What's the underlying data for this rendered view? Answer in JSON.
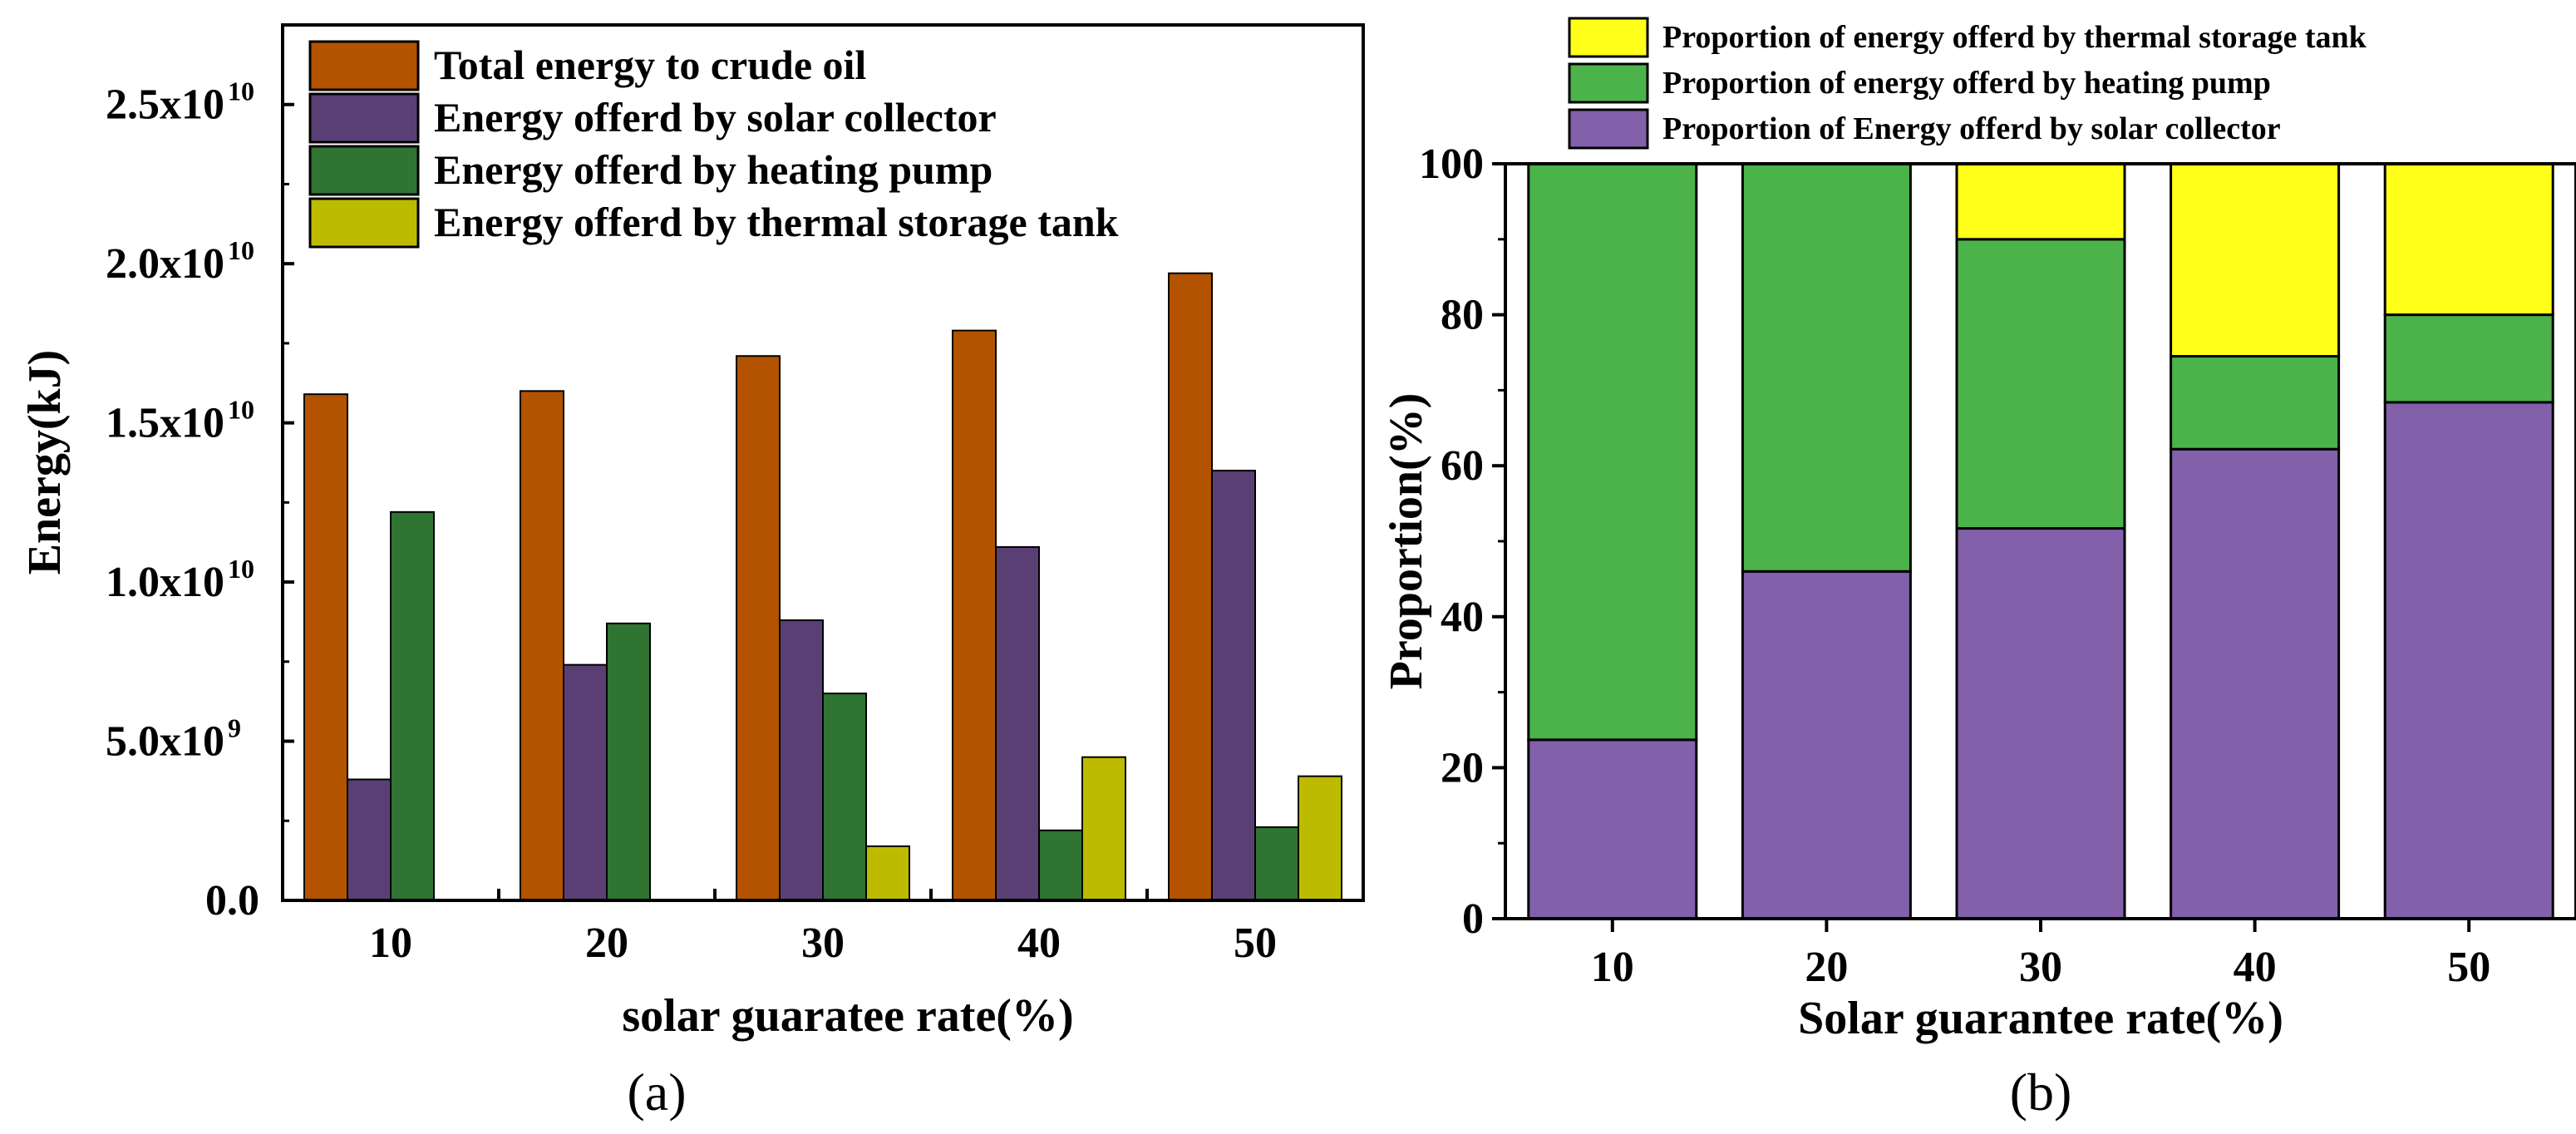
{
  "chart_data": [
    {
      "panel": "(a)",
      "type": "bar",
      "title": "",
      "xlabel": "solar guaratee rate(%)",
      "ylabel": "Energy(kJ)",
      "categories": [
        "10",
        "20",
        "30",
        "40",
        "50"
      ],
      "ylim": [
        0,
        27500000000
      ],
      "yticks": [
        {
          "value": 0,
          "mantissa": "0.0",
          "exp": ""
        },
        {
          "value": 5000000000,
          "mantissa": "5.0x10",
          "exp": "9"
        },
        {
          "value": 10000000000,
          "mantissa": "1.0x10",
          "exp": "10"
        },
        {
          "value": 15000000000,
          "mantissa": "1.5x10",
          "exp": "10"
        },
        {
          "value": 20000000000,
          "mantissa": "2.0x10",
          "exp": "10"
        },
        {
          "value": 25000000000,
          "mantissa": "2.5x10",
          "exp": "10"
        }
      ],
      "legend_position": "top-left",
      "series": [
        {
          "name": "Total energy to crude oil",
          "color": "#B35300",
          "values": [
            15900000000,
            16000000000,
            17100000000,
            17900000000,
            19700000000
          ]
        },
        {
          "name": "Energy offerd by solar collector",
          "color": "#5A3F75",
          "values": [
            3800000000,
            7400000000,
            8800000000,
            11100000000,
            13500000000
          ]
        },
        {
          "name": "Energy offerd by heating pump",
          "color": "#2F7432",
          "values": [
            12200000000,
            8700000000,
            6500000000,
            2200000000,
            2300000000
          ]
        },
        {
          "name": "Energy offerd by thermal storage tank",
          "color": "#BDBB00",
          "values": [
            0,
            0,
            1700000000,
            4500000000,
            3900000000
          ]
        }
      ]
    },
    {
      "panel": "(b)",
      "type": "bar",
      "stacked": true,
      "title": "",
      "xlabel": "Solar guarantee rate(%)",
      "ylabel": "Proportion(%)",
      "categories": [
        "10",
        "20",
        "30",
        "40",
        "50"
      ],
      "ylim": [
        0,
        100
      ],
      "yticks": [
        0,
        20,
        40,
        60,
        80,
        100
      ],
      "legend_position": "top",
      "series": [
        {
          "name": "Proportion of Energy offerd by solar collector",
          "color": "#8260AA",
          "values": [
            23.7,
            46.0,
            51.7,
            62.2,
            68.4
          ]
        },
        {
          "name": "Proportion of energy offerd by heating pump",
          "color": "#4BB349",
          "values": [
            76.3,
            54.0,
            38.3,
            12.3,
            11.6
          ]
        },
        {
          "name": "Proportion of energy offerd by thermal storage tank",
          "color": "#FFFF19",
          "values": [
            0,
            0,
            10.0,
            25.5,
            20.0
          ]
        }
      ],
      "legend_order": [
        2,
        1,
        0
      ]
    }
  ]
}
